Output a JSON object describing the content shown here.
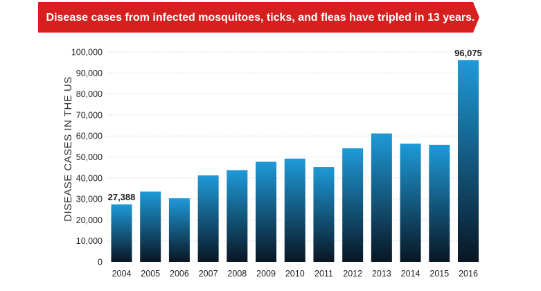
{
  "chart_data": {
    "type": "bar",
    "title": "Disease cases from infected mosquitoes, ticks, and fleas have tripled in 13 years.",
    "ylabel": "DISEASE CASES IN THE US",
    "xlabel": "",
    "categories": [
      "2004",
      "2005",
      "2006",
      "2007",
      "2008",
      "2009",
      "2010",
      "2011",
      "2012",
      "2013",
      "2014",
      "2015",
      "2016"
    ],
    "values": [
      27388,
      33500,
      30300,
      41200,
      43700,
      47700,
      49200,
      45200,
      54100,
      61200,
      56300,
      55800,
      96075
    ],
    "ylim": [
      0,
      100000
    ],
    "yticks": [
      "0",
      "10,000",
      "20,000",
      "30,000",
      "40,000",
      "50,000",
      "60,000",
      "70,000",
      "80,000",
      "90,000",
      "100,000"
    ],
    "data_labels": [
      {
        "category": "2004",
        "text": "27,388"
      },
      {
        "category": "2016",
        "text": "96,075"
      }
    ],
    "grid": true,
    "legend": "none"
  },
  "colors": {
    "banner": "#d6201f",
    "bar_top": "#1e9ad8",
    "bar_bottom": "#091624",
    "grid": "#d9d9d9"
  }
}
